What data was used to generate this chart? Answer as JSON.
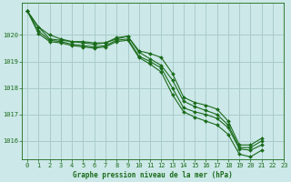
{
  "title": "Graphe pression niveau de la mer (hPa)",
  "background_color": "#cce8e8",
  "grid_color": "#aacccc",
  "line_color": "#1a6b1a",
  "marker_color": "#1a6b1a",
  "xlim": [
    -0.5,
    23
  ],
  "ylim": [
    1015.3,
    1021.2
  ],
  "yticks": [
    1016,
    1017,
    1018,
    1019,
    1020
  ],
  "xticks": [
    0,
    1,
    2,
    3,
    4,
    5,
    6,
    7,
    8,
    9,
    10,
    11,
    12,
    13,
    14,
    15,
    16,
    17,
    18,
    19,
    20,
    21,
    22,
    23
  ],
  "series": [
    [
      1020.9,
      1020.3,
      1019.85,
      1019.8,
      1019.75,
      1019.75,
      1019.7,
      1019.7,
      1019.9,
      1019.95,
      1019.4,
      1019.3,
      1019.15,
      1018.55,
      1017.65,
      1017.45,
      1017.35,
      1017.2,
      1016.75,
      1015.85,
      1015.85,
      1016.1,
      null,
      null
    ],
    [
      1020.9,
      1020.15,
      1019.8,
      1019.75,
      1019.65,
      1019.6,
      1019.55,
      1019.6,
      1019.8,
      1019.85,
      1019.2,
      1019.0,
      1018.75,
      1018.0,
      1017.25,
      1017.1,
      1017.0,
      1016.85,
      1016.5,
      1015.7,
      1015.65,
      1015.85,
      null,
      null
    ],
    [
      1020.9,
      1020.05,
      1019.75,
      1019.7,
      1019.6,
      1019.55,
      1019.5,
      1019.55,
      1019.75,
      1019.8,
      1019.15,
      1018.9,
      1018.6,
      1017.75,
      1017.1,
      1016.9,
      1016.75,
      1016.6,
      1016.25,
      1015.5,
      1015.4,
      1015.65,
      null,
      null
    ],
    [
      1020.9,
      1020.3,
      1020.0,
      1019.85,
      1019.75,
      1019.7,
      1019.65,
      1019.7,
      1019.85,
      1019.95,
      1019.35,
      1019.1,
      1018.85,
      1018.3,
      1017.5,
      1017.3,
      1017.15,
      1017.0,
      1016.6,
      1015.75,
      1015.75,
      1016.0,
      null,
      null
    ]
  ],
  "series2": [
    [
      1020.9,
      1020.3,
      1019.85,
      1019.8,
      1019.75,
      1019.75,
      1019.7,
      1019.7,
      1019.9,
      1020.0,
      1019.4,
      1019.3,
      1019.15,
      1018.55,
      1017.65,
      1017.45,
      1017.35,
      1017.2,
      1016.75,
      1015.85,
      1015.85,
      1016.1,
      null,
      null
    ],
    [
      1020.9,
      1020.1,
      1019.8,
      1019.75,
      1019.65,
      1019.6,
      1019.55,
      1019.6,
      1019.8,
      1019.85,
      1019.2,
      1019.0,
      1018.75,
      1018.0,
      1017.25,
      1017.1,
      1017.0,
      1016.85,
      1016.5,
      1015.7,
      1015.65,
      1015.85,
      null,
      null
    ],
    [
      1020.9,
      1019.85,
      1019.7,
      1019.65,
      1019.55,
      1019.5,
      1019.45,
      1019.5,
      1019.65,
      1019.7,
      1019.05,
      1018.75,
      1018.4,
      1017.55,
      1016.9,
      1016.65,
      1016.5,
      1016.35,
      1016.0,
      1015.3,
      1015.2,
      1015.45,
      null,
      null
    ],
    [
      1020.9,
      1020.25,
      1019.95,
      1019.85,
      1019.75,
      1019.7,
      1019.65,
      1019.65,
      1019.85,
      1019.9,
      1019.3,
      1019.05,
      1018.8,
      1018.2,
      1017.45,
      1017.25,
      1017.1,
      1016.95,
      1016.55,
      1015.7,
      1015.7,
      1015.95,
      null,
      null
    ]
  ]
}
